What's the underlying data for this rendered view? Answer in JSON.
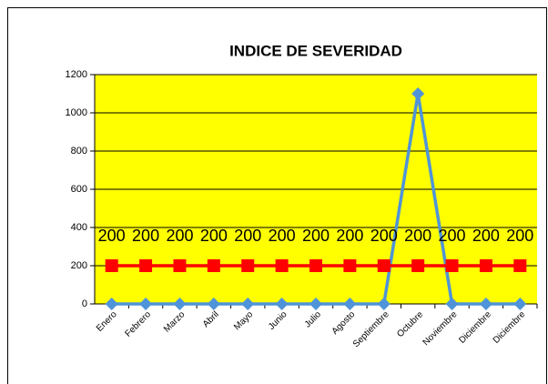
{
  "chart_data": {
    "type": "line",
    "title": "INDICE DE SEVERIDAD",
    "categories": [
      "Enero",
      "Febrero",
      "Marzo",
      "Abril",
      "Mayo",
      "Junio",
      "Julio",
      "Agosto",
      "Septiembre",
      "Octubre",
      "Noviembre",
      "Diciembre",
      "Diciembre"
    ],
    "series": [
      {
        "color": "#4f94d8",
        "marker": "diamond",
        "values": [
          0,
          0,
          0,
          0,
          0,
          0,
          0,
          0,
          0,
          1100,
          0,
          0,
          0
        ]
      },
      {
        "color": "#ff0000",
        "marker": "square",
        "data_labels": true,
        "values": [
          200,
          200,
          200,
          200,
          200,
          200,
          200,
          200,
          200,
          200,
          200,
          200,
          200
        ]
      }
    ],
    "ylim": [
      0,
      1200
    ],
    "yticks": [
      0,
      200,
      400,
      600,
      800,
      1000,
      1200
    ],
    "grid": true,
    "background": "#ffff00"
  }
}
